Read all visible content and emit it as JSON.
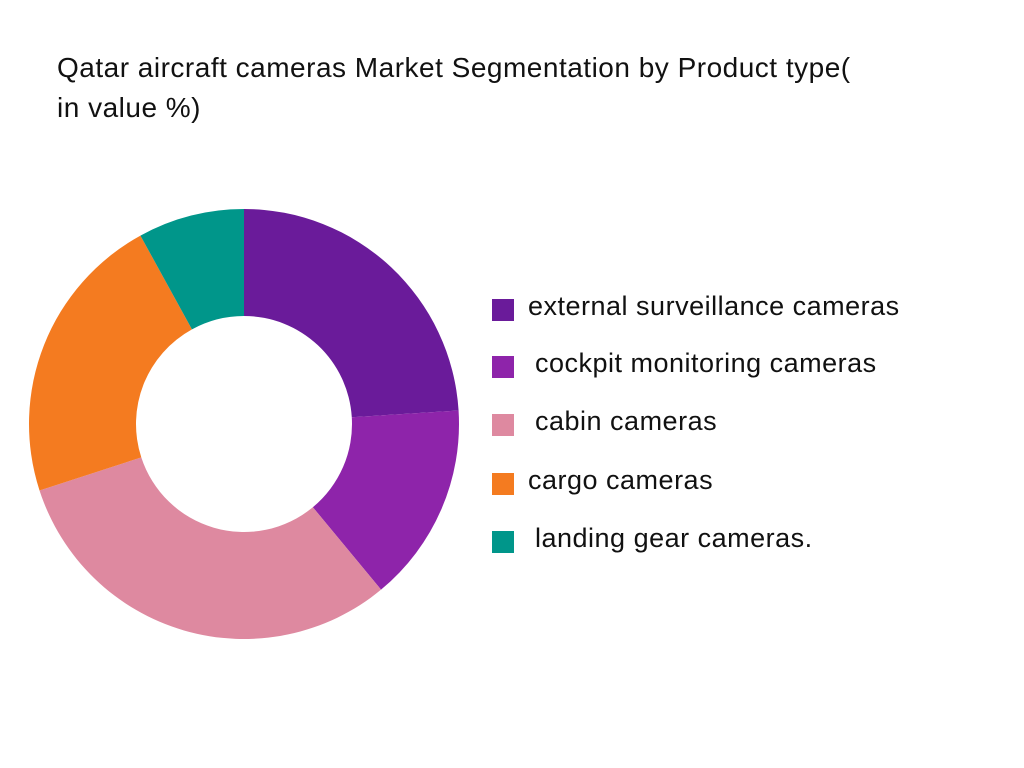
{
  "chart_data": {
    "type": "donut",
    "title": "Qatar aircraft cameras Market Segmentation by Product type( in value %)",
    "categories": [
      "external surveillance cameras",
      "cockpit monitoring cameras",
      "cabin cameras",
      "cargo cameras",
      "landing gear cameras."
    ],
    "values": [
      24,
      15,
      31,
      22,
      8
    ],
    "colors": [
      "#6a1b9a",
      "#8e24aa",
      "#de89a0",
      "#f47b20",
      "#00968a"
    ],
    "legend": "right"
  }
}
